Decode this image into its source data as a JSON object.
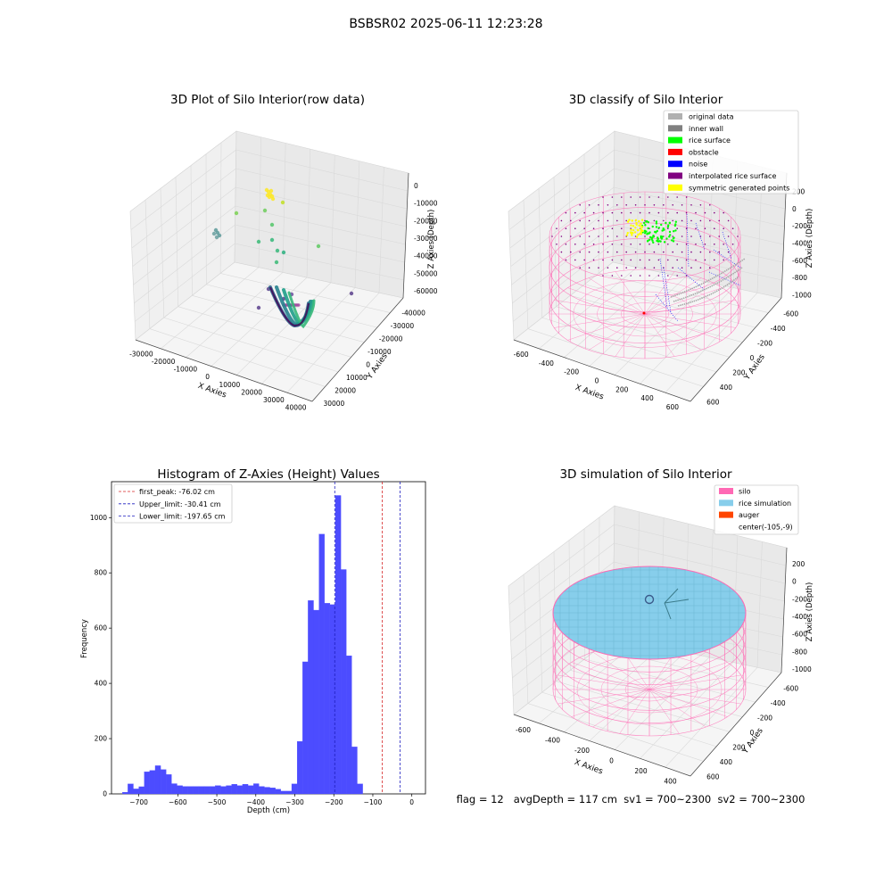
{
  "suptitle": "BSBSR02 2025-06-11 12:23:28",
  "footer": "flag = 12   avgDepth = 117 cm  sv1 = 700~2300  sv2 = 700~2300",
  "chart_data": [
    {
      "type": "scatter",
      "projection": "3d",
      "title": "3D Plot of Silo Interior(row data)",
      "xlabel": "X Axies",
      "ylabel": "Y Axies",
      "zlabel": "Z Axies (Depth)",
      "x_ticks": [
        "-30000",
        "-20000",
        "-10000",
        "0",
        "10000",
        "20000",
        "30000",
        "40000"
      ],
      "y_ticks": [
        "30000",
        "20000",
        "10000",
        "0",
        "-10000",
        "-20000",
        "-30000",
        "-40000"
      ],
      "z_ticks": [
        "0",
        "-10000",
        "-20000",
        "-30000",
        "-40000",
        "-50000",
        "-60000"
      ],
      "colormap": "viridis",
      "grid": true
    },
    {
      "type": "scatter",
      "projection": "3d",
      "title": "3D classify of Silo Interior",
      "xlabel": "X Axies",
      "ylabel": "Y Axies",
      "zlabel": "Z Axies (Depth)",
      "x_ticks": [
        "-600",
        "-400",
        "-200",
        "0",
        "200",
        "400",
        "600"
      ],
      "y_ticks": [
        "600",
        "400",
        "200",
        "0",
        "-200",
        "-400",
        "-600"
      ],
      "z_ticks": [
        "200",
        "0",
        "-200",
        "-400",
        "-600",
        "-800",
        "-1000"
      ],
      "legend_position": "top-right",
      "legend": [
        {
          "name": "original data",
          "color": "#b0b0b0"
        },
        {
          "name": "inner wall",
          "color": "#808080"
        },
        {
          "name": "rice surface",
          "color": "#00ff00"
        },
        {
          "name": "obstacle",
          "color": "#ff0000"
        },
        {
          "name": "noise",
          "color": "#0000ff"
        },
        {
          "name": "interpolated rice surface",
          "color": "#800080"
        },
        {
          "name": "symmetric generated points",
          "color": "#ffff00"
        }
      ],
      "grid": true
    },
    {
      "type": "bar",
      "subtype": "histogram",
      "title": "Histogram of Z-Axies (Height) Values",
      "xlabel": "Depth (cm)",
      "ylabel": "Frequency",
      "xlim": [
        -770,
        35
      ],
      "ylim": [
        0,
        1130
      ],
      "bin_width": 14,
      "bin_start": -742,
      "values": [
        6,
        36,
        18,
        26,
        80,
        85,
        102,
        88,
        70,
        37,
        30,
        27,
        27,
        27,
        27,
        27,
        27,
        30,
        27,
        30,
        35,
        30,
        35,
        30,
        37,
        27,
        24,
        22,
        17,
        10,
        10,
        36,
        190,
        478,
        700,
        665,
        940,
        690,
        685,
        1080,
        812,
        500,
        170,
        36
      ],
      "x_ticks": [
        "−700",
        "−600",
        "−500",
        "−400",
        "−300",
        "−200",
        "−100",
        "0"
      ],
      "y_ticks": [
        "0",
        "200",
        "400",
        "600",
        "800",
        "1000"
      ],
      "bar_color": "#4c4cff",
      "vlines": [
        {
          "name": "first_peak: -76.02 cm",
          "x": -76.02,
          "color": "#d62728"
        },
        {
          "name": "Upper_limit: -30.41 cm",
          "x": -30.41,
          "color": "#1f1fbf"
        },
        {
          "name": "Lower_limit: -197.65 cm",
          "x": -197.65,
          "color": "#1f1fbf"
        }
      ],
      "legend_position": "top-left"
    },
    {
      "type": "scatter",
      "projection": "3d",
      "title": "3D simulation of Silo Interior",
      "xlabel": "X Axies",
      "ylabel": "Y Axies",
      "zlabel": "Z Axies (Depth)",
      "x_ticks": [
        "-600",
        "-400",
        "-200",
        "0",
        "200",
        "400"
      ],
      "y_ticks": [
        "600",
        "400",
        "200",
        "0",
        "-200",
        "-400",
        "-600"
      ],
      "z_ticks": [
        "200",
        "0",
        "-200",
        "-400",
        "-600",
        "-800",
        "-1000"
      ],
      "legend_position": "top-right",
      "legend": [
        {
          "name": "silo",
          "color": "#ff69b4"
        },
        {
          "name": "rice simulation",
          "color": "#87ceeb"
        },
        {
          "name": "auger",
          "color": "#ff4500"
        },
        {
          "name": "center(-105,-9)",
          "color": ""
        }
      ],
      "grid": true
    }
  ]
}
